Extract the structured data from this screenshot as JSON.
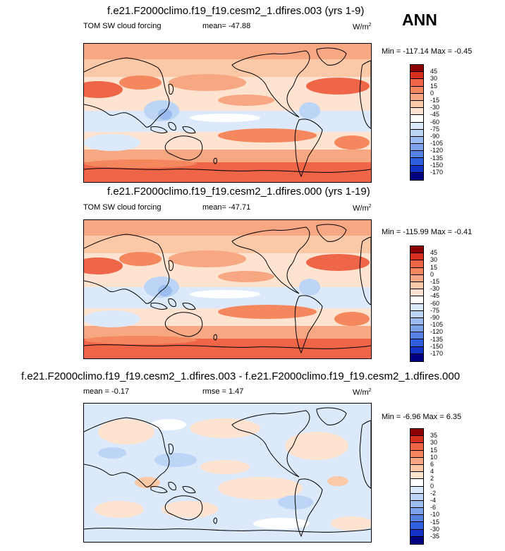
{
  "header": {
    "season": "ANN"
  },
  "panels": [
    {
      "title": "f.e21.F2000climo.f19_f19.cesm2_1.dfires.003 (yrs 1-9)",
      "left_label": "TOM SW cloud forcing",
      "mean_label": "mean= -47.88",
      "units": "W/m",
      "units_exp": "2",
      "minmax": "Min = -117.14 Max =  -0.45",
      "colorbar": {
        "levels": [
          "45",
          "30",
          "15",
          "0",
          "-15",
          "-30",
          "-45",
          "-60",
          "-75",
          "-90",
          "-105",
          "-120",
          "-135",
          "-150",
          "-170"
        ],
        "colors": [
          "#8b0000",
          "#d7301f",
          "#ef6548",
          "#f4875e",
          "#f7a882",
          "#fbc8a8",
          "#fde3d0",
          "#ffffff",
          "#dce9fa",
          "#bcd4f5",
          "#9cbcef",
          "#7ca2ea",
          "#5582e4",
          "#2f5fdc",
          "#1333c6",
          "#000080"
        ]
      }
    },
    {
      "title": "f.e21.F2000climo.f19_f19.cesm2_1.dfires.000 (yrs 1-19)",
      "left_label": "TOM SW cloud forcing",
      "mean_label": "mean= -47.71",
      "units": "W/m",
      "units_exp": "2",
      "minmax": "Min = -115.99 Max =  -0.41",
      "colorbar": {
        "levels": [
          "45",
          "30",
          "15",
          "0",
          "-15",
          "-30",
          "-45",
          "-60",
          "-75",
          "-90",
          "-105",
          "-120",
          "-135",
          "-150",
          "-170"
        ],
        "colors": [
          "#8b0000",
          "#d7301f",
          "#ef6548",
          "#f4875e",
          "#f7a882",
          "#fbc8a8",
          "#fde3d0",
          "#ffffff",
          "#dce9fa",
          "#bcd4f5",
          "#9cbcef",
          "#7ca2ea",
          "#5582e4",
          "#2f5fdc",
          "#1333c6",
          "#000080"
        ]
      }
    },
    {
      "title": "f.e21.F2000climo.f19_f19.cesm2_1.dfires.003 - f.e21.F2000climo.f19_f19.cesm2_1.dfires.000",
      "left_label": "mean =  -0.17",
      "mean_label": "rmse =   1.47",
      "units": "W/m",
      "units_exp": "2",
      "minmax": "Min =  -6.96 Max =   6.35",
      "colorbar": {
        "levels": [
          "35",
          "30",
          "15",
          "10",
          "6",
          "4",
          "2",
          "0",
          "-2",
          "-4",
          "-6",
          "-10",
          "-15",
          "-30",
          "-35"
        ],
        "colors": [
          "#8b0000",
          "#d7301f",
          "#ef6548",
          "#f4875e",
          "#f7a882",
          "#fbc8a8",
          "#fde3d0",
          "#ffffff",
          "#dce9fa",
          "#bcd4f5",
          "#9cbcef",
          "#7ca2ea",
          "#5582e4",
          "#2f5fdc",
          "#1333c6",
          "#000080"
        ]
      }
    }
  ]
}
